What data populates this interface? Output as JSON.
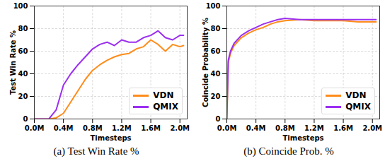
{
  "chart_data": [
    {
      "type": "line",
      "title": "(a) Test Win Rate %",
      "x_label": "Timesteps",
      "y_label": "Test Win Rate %",
      "x": [
        0,
        100000,
        200000,
        300000,
        400000,
        500000,
        600000,
        700000,
        800000,
        900000,
        1000000,
        1100000,
        1200000,
        1300000,
        1400000,
        1500000,
        1600000,
        1700000,
        1800000,
        1900000,
        2000000,
        2050000
      ],
      "series": [
        {
          "name": "VDN",
          "color": "#ff8c1a",
          "values": [
            0,
            0,
            0,
            1,
            5,
            15,
            25,
            35,
            43,
            48,
            52,
            55,
            57,
            58,
            62,
            64,
            70,
            66,
            60,
            66,
            64,
            65
          ]
        },
        {
          "name": "QMIX",
          "color": "#9b30f0",
          "values": [
            0,
            0,
            0,
            8,
            30,
            40,
            48,
            55,
            62,
            66,
            68,
            65,
            70,
            68,
            68,
            72,
            74,
            78,
            72,
            70,
            74,
            74
          ]
        }
      ],
      "xlim": [
        0,
        2100000
      ],
      "xticks": [
        {
          "value": 0,
          "label": "0.0M"
        },
        {
          "value": 400000,
          "label": "0.4M"
        },
        {
          "value": 800000,
          "label": "0.8M"
        },
        {
          "value": 1200000,
          "label": "1.2M"
        },
        {
          "value": 1600000,
          "label": "1.6M"
        },
        {
          "value": 2000000,
          "label": "2.0M"
        }
      ],
      "ylim": [
        0,
        100
      ],
      "yticks": [
        0,
        20,
        40,
        60,
        80,
        100
      ],
      "grid": true,
      "legend": "lower right"
    },
    {
      "type": "line",
      "title": "(b) Coincide Prob. %",
      "x_label": "Timesteps",
      "y_label": "Coincide Probability %",
      "x": [
        0,
        20000,
        50000,
        100000,
        200000,
        300000,
        400000,
        500000,
        600000,
        700000,
        800000,
        1000000,
        1200000,
        1400000,
        1600000,
        1800000,
        2000000,
        2050000
      ],
      "series": [
        {
          "name": "VDN",
          "color": "#ff8c1a",
          "values": [
            0,
            50,
            58,
            65,
            72,
            76,
            79,
            81,
            84,
            86,
            87,
            88,
            87,
            87,
            87,
            86,
            86,
            86
          ]
        },
        {
          "name": "QMIX",
          "color": "#9b30f0",
          "values": [
            0,
            52,
            60,
            67,
            74,
            78,
            81,
            84,
            86,
            88,
            89,
            88,
            88,
            88,
            88,
            88,
            88,
            88
          ]
        }
      ],
      "xlim": [
        0,
        2100000
      ],
      "xticks": [
        {
          "value": 0,
          "label": "0.0M"
        },
        {
          "value": 400000,
          "label": "0.4M"
        },
        {
          "value": 800000,
          "label": "0.8M"
        },
        {
          "value": 1200000,
          "label": "1.2M"
        },
        {
          "value": 1600000,
          "label": "1.6M"
        },
        {
          "value": 2000000,
          "label": "2.0M"
        }
      ],
      "ylim": [
        0,
        100
      ],
      "yticks": [
        0,
        20,
        40,
        60,
        80,
        100
      ],
      "grid": true,
      "legend": "lower right"
    }
  ]
}
